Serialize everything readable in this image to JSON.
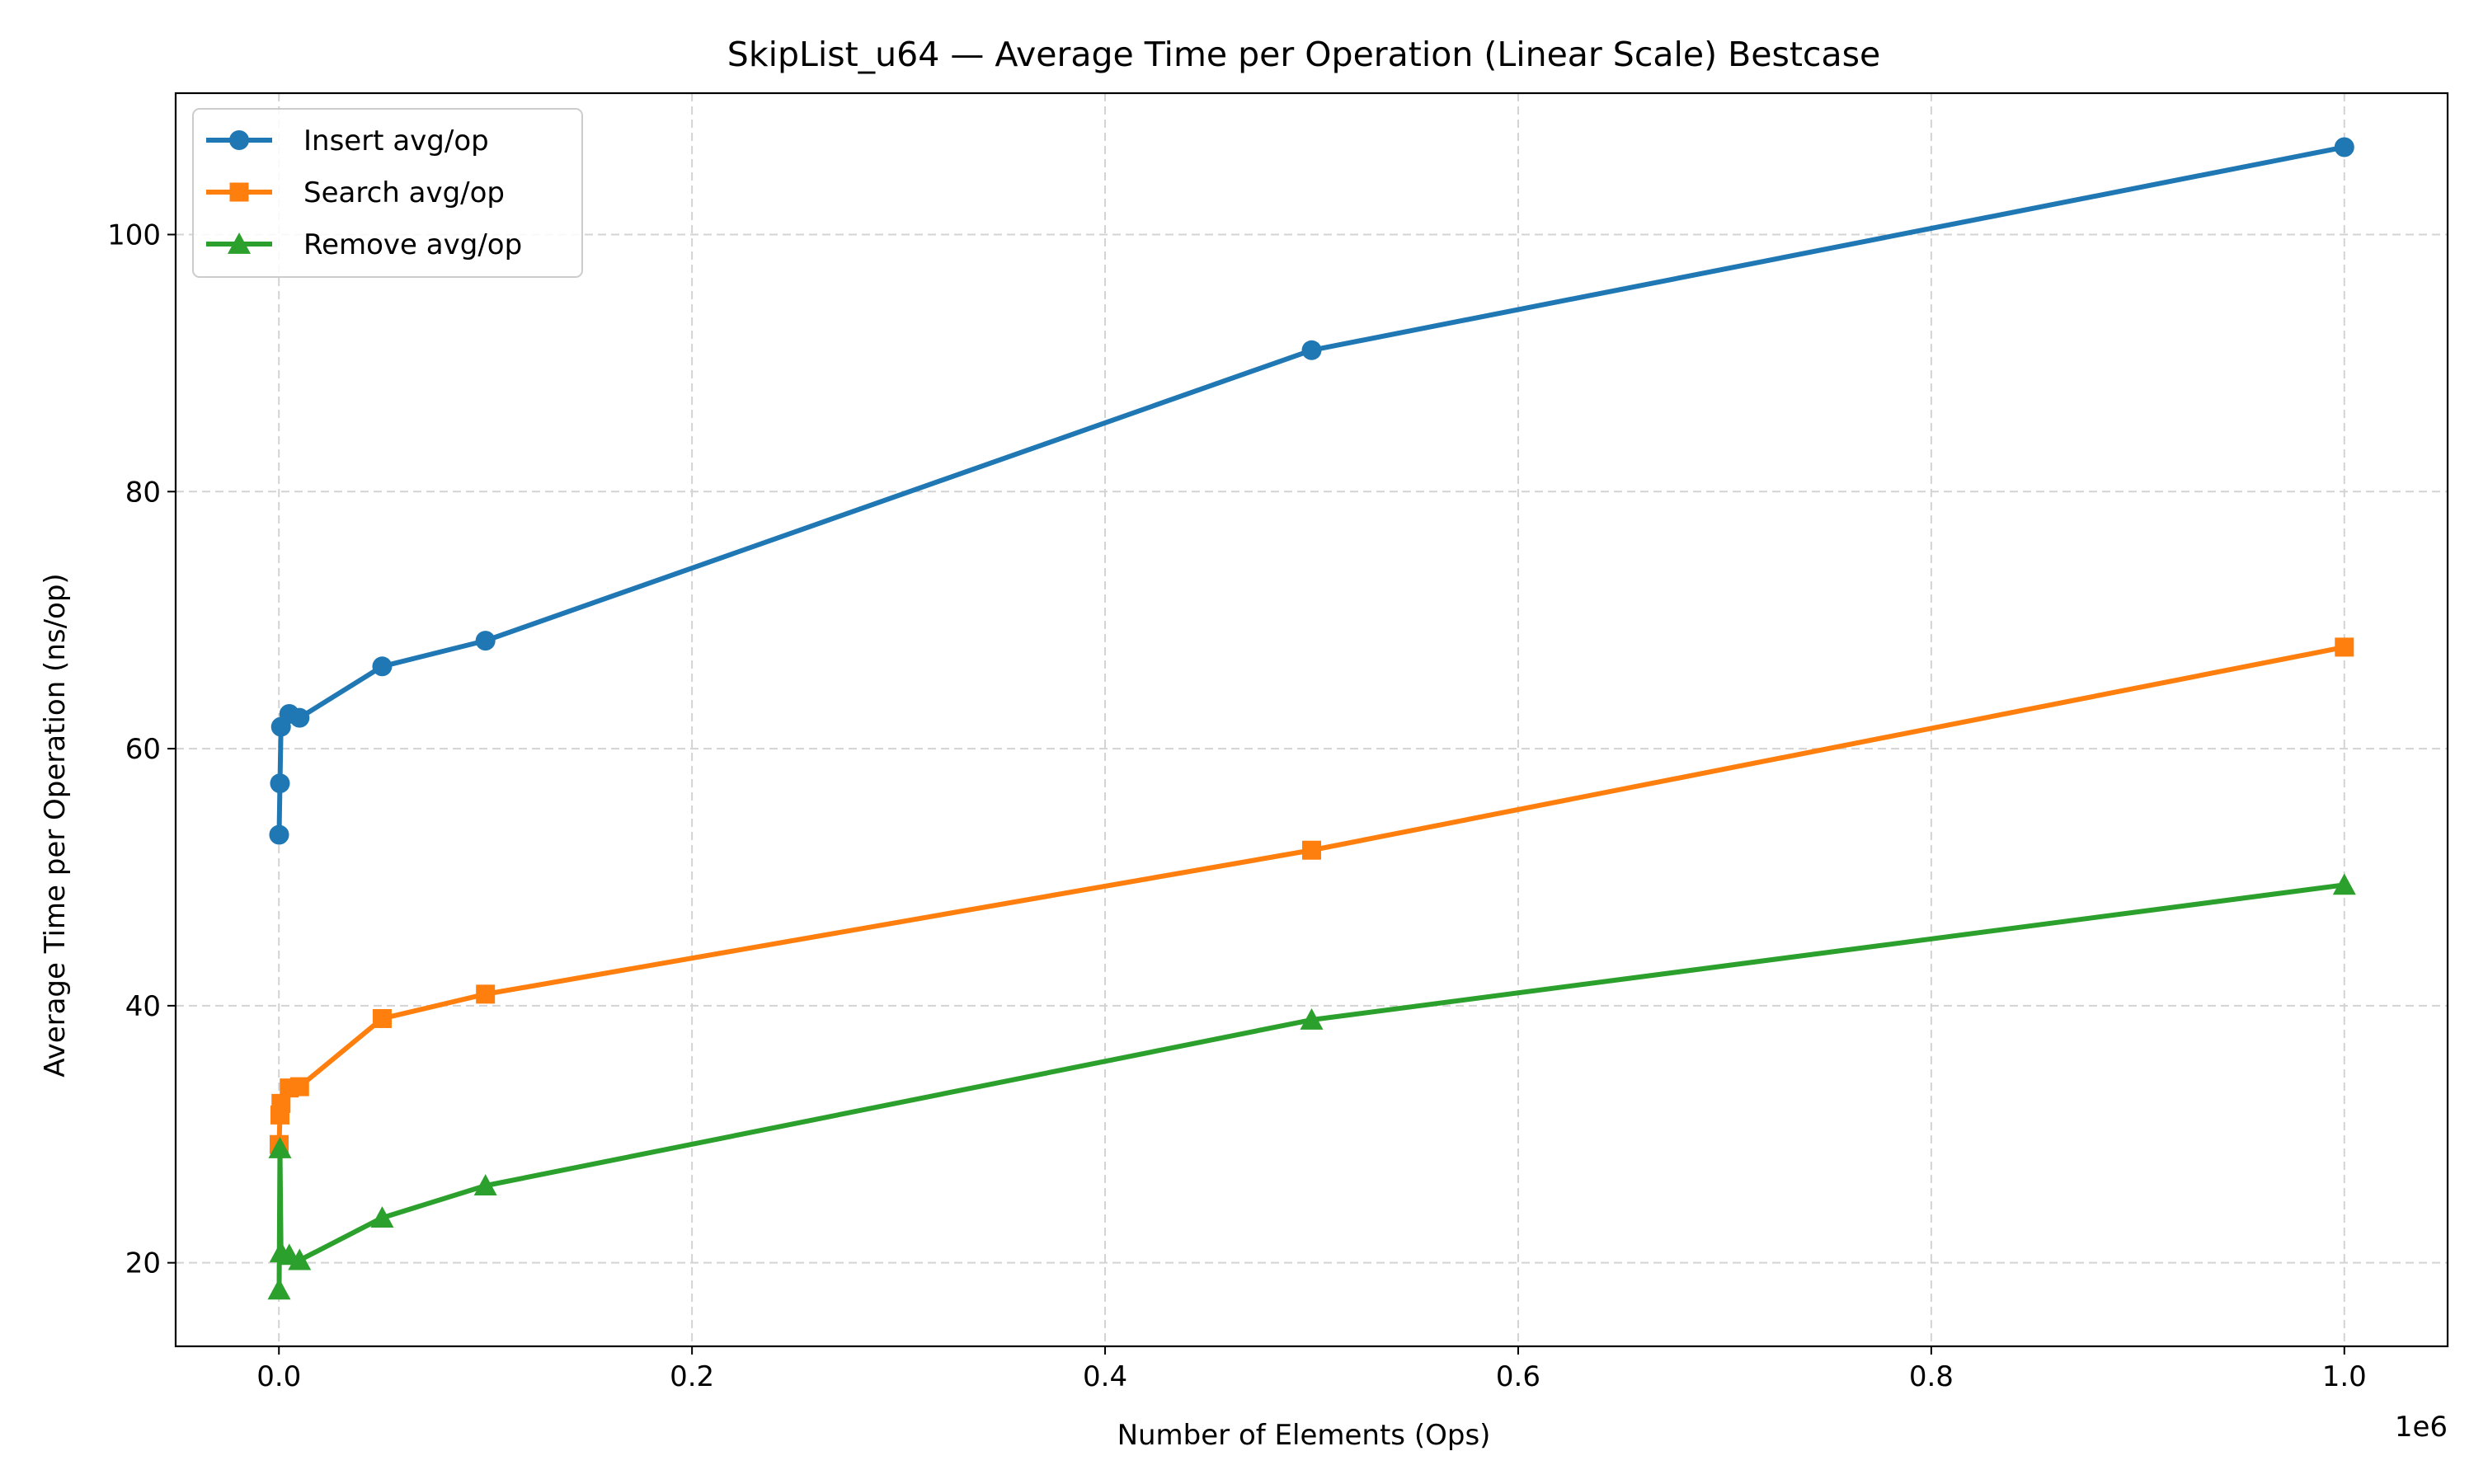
{
  "chart_data": {
    "type": "line",
    "title": "SkipList_u64 — Average Time per Operation (Linear Scale) Bestcase",
    "xlabel": "Number of Elements (Ops)",
    "ylabel": "Average Time per Operation (ns/op)",
    "x_offset_label": "1e6",
    "x_scale_factor": 1000000,
    "xlim": [
      -50000,
      1050000
    ],
    "ylim": [
      13.5,
      111
    ],
    "x_ticks": [
      0,
      200000,
      400000,
      600000,
      800000,
      1000000
    ],
    "x_tick_labels": [
      "0.0",
      "0.2",
      "0.4",
      "0.6",
      "0.8",
      "1.0"
    ],
    "y_ticks": [
      20,
      40,
      60,
      80,
      100
    ],
    "y_tick_labels": [
      "20",
      "40",
      "60",
      "80",
      "100"
    ],
    "grid": true,
    "legend_position": "top-left",
    "x": [
      100,
      500,
      1000,
      5000,
      10000,
      50000,
      100000,
      500000,
      1000000
    ],
    "series": [
      {
        "name": "Insert avg/op",
        "color": "#1f77b4",
        "marker": "circle",
        "values": [
          53.3,
          57.3,
          61.7,
          62.7,
          62.4,
          66.4,
          68.4,
          91.0,
          106.8
        ]
      },
      {
        "name": "Search avg/op",
        "color": "#ff7f0e",
        "marker": "square",
        "values": [
          29.2,
          31.5,
          32.4,
          33.6,
          33.7,
          39.0,
          40.9,
          52.1,
          67.9
        ]
      },
      {
        "name": "Remove avg/op",
        "color": "#2ca02c",
        "marker": "triangle",
        "values": [
          17.9,
          28.9,
          20.8,
          20.6,
          20.2,
          23.5,
          26.0,
          38.9,
          49.4
        ]
      }
    ]
  }
}
